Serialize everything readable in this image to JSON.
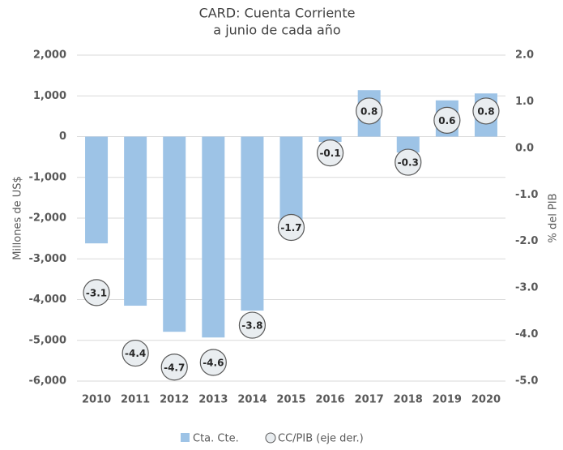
{
  "chart_data": {
    "type": "bar",
    "title": "CARD: Cuenta Corriente",
    "subtitle": "a junio de cada año",
    "ylabel": "Millones de US$",
    "y2label": "% del PIB",
    "categories": [
      "2010",
      "2011",
      "2012",
      "2013",
      "2014",
      "2015",
      "2016",
      "2017",
      "2018",
      "2019",
      "2020"
    ],
    "series": [
      {
        "name": "Cta. Cte.",
        "color": "#9dc3e6",
        "values": [
          -2620,
          -4150,
          -4790,
          -4930,
          -4270,
          -2040,
          -130,
          1140,
          -390,
          890,
          1060
        ]
      },
      {
        "name": "CC/PIB (eje der.)",
        "color": "#e9edf0",
        "axis": "y2",
        "values": [
          -3.1,
          -4.4,
          -4.7,
          -4.6,
          -3.8,
          -1.7,
          -0.1,
          0.8,
          -0.3,
          0.6,
          0.8
        ]
      }
    ],
    "ylim": [
      -6000,
      2000
    ],
    "yticks": [
      {
        "value": -6000,
        "label": "-6,000"
      },
      {
        "value": -5000,
        "label": "-5,000"
      },
      {
        "value": -4000,
        "label": "-4,000"
      },
      {
        "value": -3000,
        "label": "-3,000"
      },
      {
        "value": -2000,
        "label": "-2,000"
      },
      {
        "value": -1000,
        "label": "-1,000"
      },
      0,
      {
        "value": 1000,
        "label": "1,000"
      },
      {
        "value": 2000,
        "label": "2,000"
      }
    ],
    "y2lim": [
      -5,
      2
    ],
    "y2ticks": [
      {
        "value": -5,
        "label": "-5.0"
      },
      {
        "value": -4,
        "label": "-4.0"
      },
      {
        "value": -3,
        "label": "-3.0"
      },
      {
        "value": -2,
        "label": "-2.0"
      },
      {
        "value": -1,
        "label": "-1.0"
      },
      {
        "value": 0,
        "label": "0.0"
      },
      {
        "value": 1,
        "label": "1.0"
      },
      {
        "value": 2,
        "label": "2.0"
      }
    ],
    "grid": true
  }
}
